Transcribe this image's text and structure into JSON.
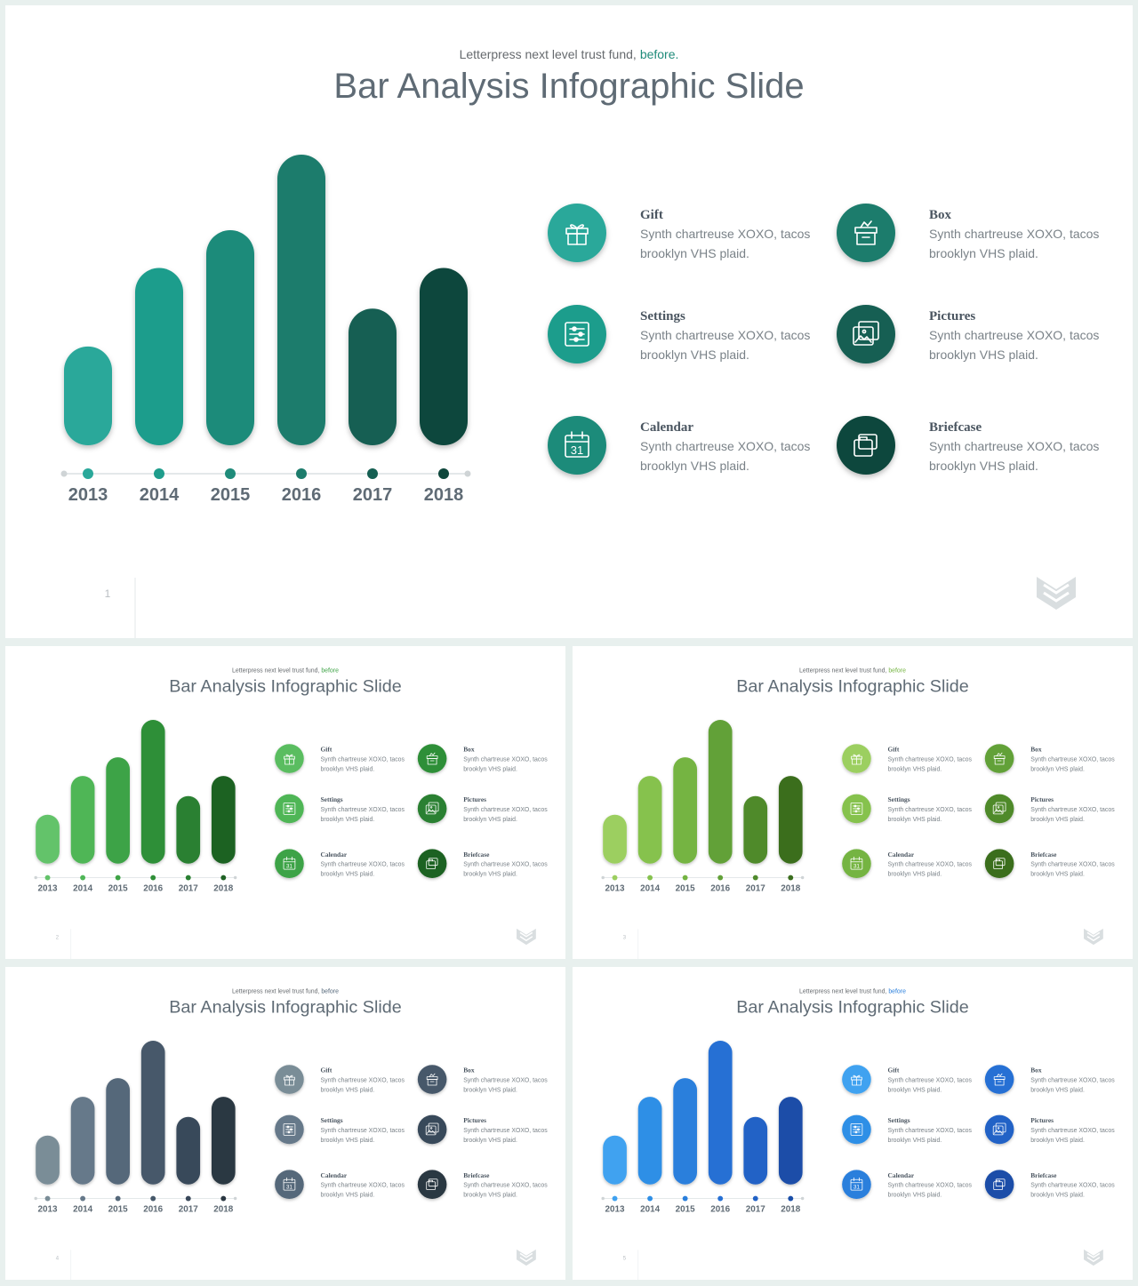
{
  "slides": [
    {
      "number": "1",
      "subtitle": "Letterpress next level trust fund,",
      "subtitle_highlight": "before.",
      "title": "Bar Analysis Infographic Slide",
      "theme": {
        "bar_colors": [
          "#2aa89a",
          "#1f9d8c",
          "#1f8b7a",
          "#1d7c6c",
          "#155f52",
          "#0f473c"
        ],
        "accent": "#1f8b7a",
        "icon_colors": [
          "#2aa89a",
          "#1d7c6c",
          "#1f9d8c",
          "#155f52",
          "#1f8b7a",
          "#0f473c"
        ]
      }
    },
    {
      "number": "2",
      "subtitle": "Letterpress next level trust fund,",
      "subtitle_highlight": "before",
      "title": "Bar Analysis Infographic Slide",
      "theme": {
        "bar_colors": [
          "#63c36a",
          "#4fb657",
          "#3ea346",
          "#2f8f38",
          "#2a8032",
          "#1f6224"
        ],
        "accent": "#3ea346",
        "icon_colors": [
          "#5abd60",
          "#2f8f38",
          "#4fb657",
          "#2a8032",
          "#3ea346",
          "#1f6224"
        ]
      }
    },
    {
      "number": "3",
      "subtitle": "Letterpress next level trust fund,",
      "subtitle_highlight": "before",
      "title": "Bar Analysis Infographic Slide",
      "theme": {
        "bar_colors": [
          "#9ccf60",
          "#86c24e",
          "#74b442",
          "#62a138",
          "#4f8a2c",
          "#3b6e1e"
        ],
        "accent": "#74b442",
        "icon_colors": [
          "#9ccf60",
          "#62a138",
          "#86c24e",
          "#4f8a2c",
          "#74b442",
          "#3b6e1e"
        ]
      }
    },
    {
      "number": "4",
      "subtitle": "Letterpress next level trust fund,",
      "subtitle_highlight": "before",
      "title": "Bar Analysis Infographic Slide",
      "theme": {
        "bar_colors": [
          "#7a8d97",
          "#66798a",
          "#55687a",
          "#46586a",
          "#39485a",
          "#2b3742"
        ],
        "accent": "#55687a",
        "icon_colors": [
          "#7a8d97",
          "#46586a",
          "#66798a",
          "#39485a",
          "#55687a",
          "#2b3742"
        ]
      }
    },
    {
      "number": "5",
      "subtitle": "Letterpress next level trust fund,",
      "subtitle_highlight": "before",
      "title": "Bar Analysis Infographic Slide",
      "theme": {
        "bar_colors": [
          "#3fa2f0",
          "#2f8fe6",
          "#2a7fdc",
          "#2670d4",
          "#2262c6",
          "#1a4ea8"
        ],
        "accent": "#2a7fdc",
        "icon_colors": [
          "#3fa2f0",
          "#2670d4",
          "#2f8fe6",
          "#2262c6",
          "#2a7fdc",
          "#1a4ea8"
        ]
      }
    }
  ],
  "items": [
    {
      "icon": "gift-icon",
      "title": "Gift",
      "line1": "Synth chartreuse XOXO, tacos",
      "line2": "brooklyn VHS plaid."
    },
    {
      "icon": "box-icon",
      "title": "Box",
      "line1": "Synth chartreuse XOXO, tacos",
      "line2": "brooklyn VHS plaid."
    },
    {
      "icon": "settings-icon",
      "title": "Settings",
      "line1": "Synth chartreuse XOXO, tacos",
      "line2": "brooklyn VHS plaid."
    },
    {
      "icon": "pictures-icon",
      "title": "Pictures",
      "line1": "Synth chartreuse XOXO, tacos",
      "line2": "brooklyn VHS plaid."
    },
    {
      "icon": "calendar-icon",
      "title": "Calendar",
      "line1": "Synth chartreuse XOXO, tacos",
      "line2": "brooklyn VHS plaid.",
      "calendar_day": "31"
    },
    {
      "icon": "briefcase-icon",
      "title": "Briefcase",
      "line1": "Synth chartreuse XOXO, tacos",
      "line2": "brooklyn VHS plaid."
    }
  ],
  "chart_data": {
    "type": "bar",
    "categories": [
      "2013",
      "2014",
      "2015",
      "2016",
      "2017",
      "2018"
    ],
    "values": [
      3.4,
      6.1,
      7.4,
      10.0,
      4.7,
      6.1
    ],
    "title": "",
    "xlabel": "",
    "ylabel": "",
    "ylim": [
      0,
      10
    ]
  }
}
